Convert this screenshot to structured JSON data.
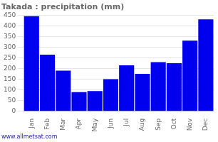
{
  "chart_data": {
    "type": "bar",
    "title": "Takada : precipitation (mm)",
    "categories": [
      "Jan",
      "Feb",
      "Mar",
      "Apr",
      "May",
      "Jun",
      "Jul",
      "Aug",
      "Sep",
      "Oct",
      "Nov",
      "Dec"
    ],
    "values": [
      445,
      265,
      190,
      90,
      95,
      150,
      215,
      175,
      230,
      225,
      330,
      430
    ],
    "color": "#0000ee",
    "ylim": [
      0,
      450
    ],
    "yticks": [
      0,
      50,
      100,
      150,
      200,
      250,
      300,
      350,
      400,
      450
    ],
    "grid": true,
    "annotations": [
      "www.allmetsat.com"
    ]
  }
}
